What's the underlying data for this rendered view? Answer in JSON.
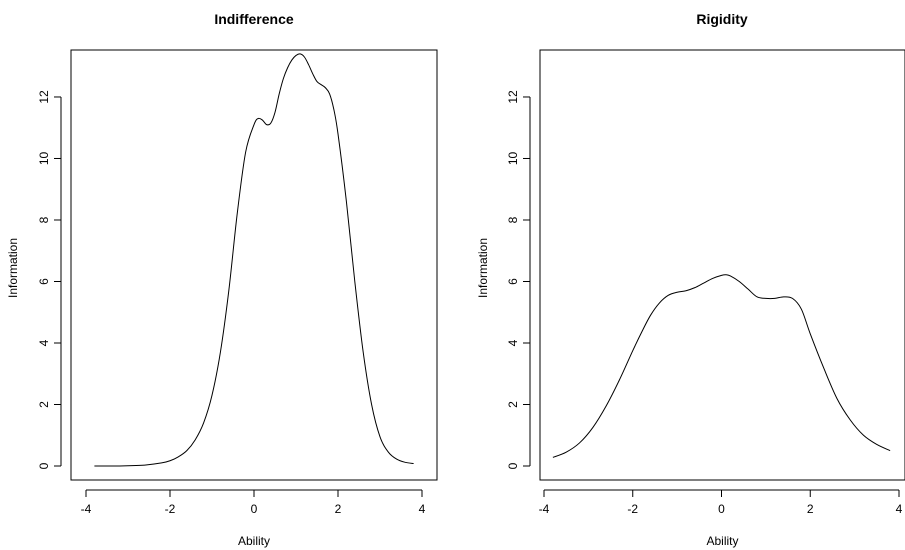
{
  "chart_data": [
    {
      "type": "line",
      "title": "Indifference",
      "xlabel": "Ability",
      "ylabel": "Information",
      "xlim": [
        -4,
        4
      ],
      "ylim": [
        0,
        13.5
      ],
      "xticks": [
        -4,
        -2,
        0,
        2,
        4
      ],
      "yticks": [
        0,
        2,
        4,
        6,
        8,
        10,
        12
      ],
      "grid": false,
      "series": [
        {
          "x": [
            -3.8,
            -3.4,
            -3.0,
            -2.6,
            -2.2,
            -2.0,
            -1.8,
            -1.6,
            -1.4,
            -1.2,
            -1.0,
            -0.8,
            -0.6,
            -0.4,
            -0.2,
            0.0,
            0.1,
            0.2,
            0.3,
            0.4,
            0.5,
            0.6,
            0.7,
            0.8,
            0.9,
            1.0,
            1.1,
            1.2,
            1.3,
            1.4,
            1.5,
            1.6,
            1.7,
            1.8,
            1.9,
            2.0,
            2.2,
            2.4,
            2.6,
            2.8,
            3.0,
            3.2,
            3.4,
            3.6,
            3.8
          ],
          "y": [
            0.0,
            0.0,
            0.01,
            0.03,
            0.1,
            0.17,
            0.3,
            0.5,
            0.85,
            1.4,
            2.3,
            3.7,
            5.7,
            8.2,
            10.2,
            11.1,
            11.3,
            11.25,
            11.1,
            11.15,
            11.5,
            12.1,
            12.6,
            12.95,
            13.2,
            13.35,
            13.4,
            13.3,
            13.05,
            12.75,
            12.5,
            12.4,
            12.3,
            12.1,
            11.6,
            10.8,
            8.6,
            6.0,
            3.7,
            2.0,
            0.95,
            0.45,
            0.22,
            0.12,
            0.08
          ]
        }
      ]
    },
    {
      "type": "line",
      "title": "Rigidity",
      "xlabel": "Ability",
      "ylabel": "Information",
      "xlim": [
        -4,
        4
      ],
      "ylim": [
        0,
        13.5
      ],
      "xticks": [
        -4,
        -2,
        0,
        2,
        4
      ],
      "yticks": [
        0,
        2,
        4,
        6,
        8,
        10,
        12
      ],
      "grid": false,
      "series": [
        {
          "x": [
            -3.8,
            -3.5,
            -3.2,
            -2.9,
            -2.6,
            -2.3,
            -2.0,
            -1.8,
            -1.6,
            -1.4,
            -1.2,
            -1.0,
            -0.8,
            -0.6,
            -0.4,
            -0.2,
            0.0,
            0.1,
            0.2,
            0.4,
            0.6,
            0.8,
            1.0,
            1.2,
            1.4,
            1.6,
            1.8,
            2.0,
            2.3,
            2.6,
            2.9,
            3.2,
            3.5,
            3.8
          ],
          "y": [
            0.28,
            0.45,
            0.75,
            1.25,
            1.95,
            2.8,
            3.75,
            4.35,
            4.9,
            5.3,
            5.55,
            5.65,
            5.7,
            5.8,
            5.95,
            6.1,
            6.2,
            6.22,
            6.18,
            6.0,
            5.75,
            5.5,
            5.45,
            5.45,
            5.5,
            5.45,
            5.1,
            4.3,
            3.2,
            2.2,
            1.5,
            1.0,
            0.7,
            0.5
          ]
        }
      ]
    }
  ]
}
